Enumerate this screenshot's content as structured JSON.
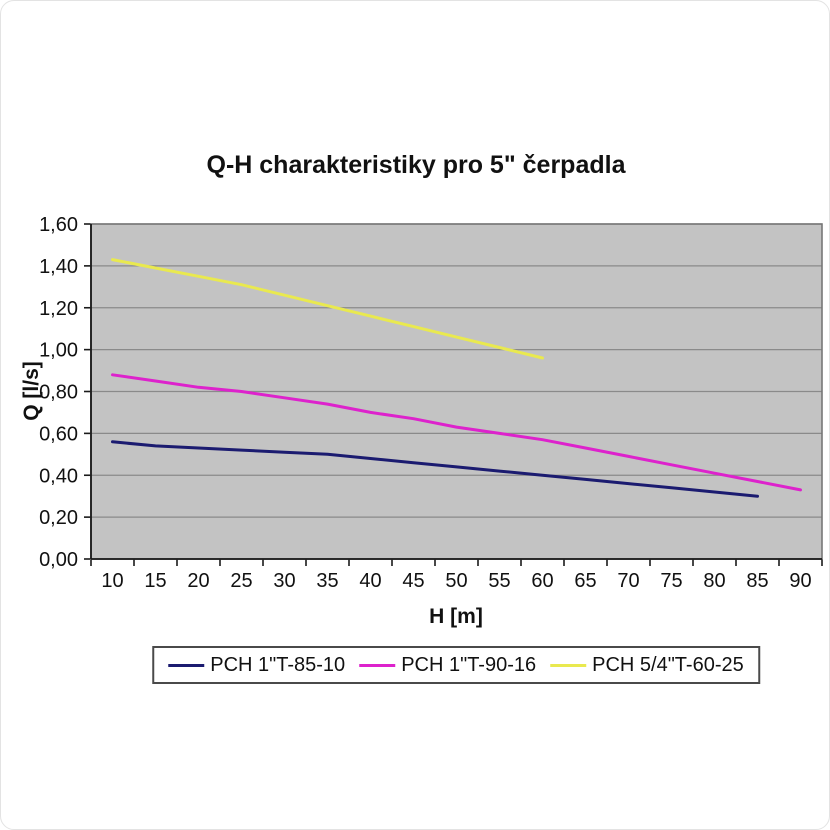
{
  "chart_data": {
    "type": "line",
    "title": "Q-H charakteristiky pro 5\" čerpadla",
    "xlabel": "H [m]",
    "ylabel": "Q [l/s]",
    "x_ticks": [
      10,
      15,
      20,
      25,
      30,
      35,
      40,
      45,
      50,
      55,
      60,
      65,
      70,
      75,
      80,
      85,
      90
    ],
    "x_step": 5,
    "ylim": [
      0,
      1.6
    ],
    "y_tick_step": 0.2,
    "y_tick_labels": [
      "0,00",
      "0,20",
      "0,40",
      "0,60",
      "0,80",
      "1,00",
      "1,20",
      "1,40",
      "1,60"
    ],
    "decimal_separator": ",",
    "grid": "horizontal",
    "legend_position": "bottom",
    "plot_bg_color": "#C3C3C3",
    "gridline_color": "#8A8A8A",
    "plot_border_color": "#777777",
    "axis_line_color": "#1a1a1a",
    "series": [
      {
        "name": "PCH 1\"T-85-10",
        "color": "#1B1B70",
        "x": [
          10,
          15,
          20,
          25,
          30,
          35,
          40,
          45,
          50,
          55,
          60,
          65,
          70,
          75,
          80,
          85
        ],
        "values": [
          0.56,
          0.54,
          0.53,
          0.52,
          0.51,
          0.5,
          0.48,
          0.46,
          0.44,
          0.42,
          0.4,
          0.38,
          0.36,
          0.34,
          0.32,
          0.3
        ]
      },
      {
        "name": "PCH 1\"T-90-16",
        "color": "#DD22CC",
        "x": [
          10,
          15,
          20,
          25,
          30,
          35,
          40,
          45,
          50,
          55,
          60,
          65,
          70,
          75,
          80,
          85,
          90
        ],
        "values": [
          0.88,
          0.85,
          0.82,
          0.8,
          0.77,
          0.74,
          0.7,
          0.67,
          0.63,
          0.6,
          0.57,
          0.53,
          0.49,
          0.45,
          0.41,
          0.37,
          0.33
        ]
      },
      {
        "name": "PCH 5/4\"T-60-25",
        "color": "#E9E94F",
        "x": [
          10,
          15,
          20,
          25,
          30,
          35,
          40,
          45,
          50,
          55,
          60
        ],
        "values": [
          1.43,
          1.39,
          1.35,
          1.31,
          1.26,
          1.21,
          1.16,
          1.11,
          1.06,
          1.01,
          0.96
        ]
      }
    ]
  }
}
